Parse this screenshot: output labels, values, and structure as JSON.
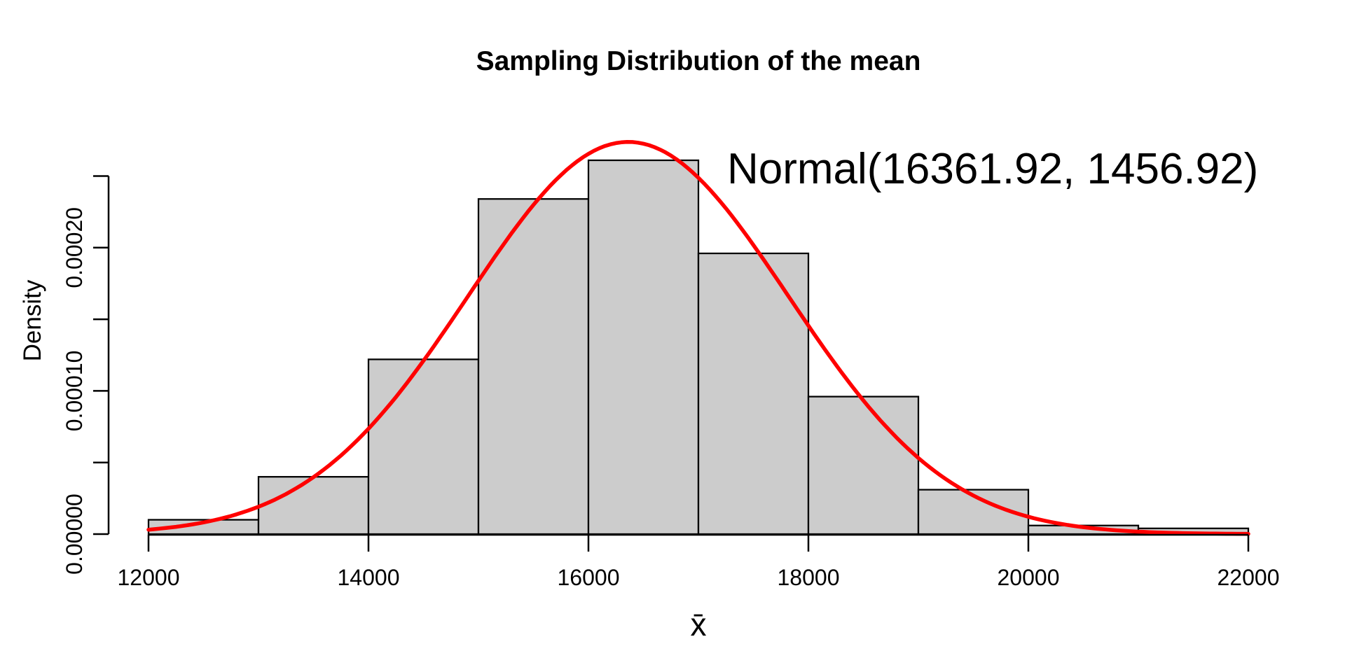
{
  "window": {
    "background": "#ffffff"
  },
  "chart_data": {
    "type": "bar",
    "subtype": "histogram-with-normal-curve",
    "title": "Sampling Distribution of the mean",
    "xlabel": "x̄",
    "ylabel": "Density",
    "annotation": "Normal(16361.92, 1456.92)",
    "normal_curve": {
      "mean": 16361.92,
      "sd": 1456.92,
      "color": "#ff0000",
      "stroke_width": 5.5
    },
    "bins": {
      "start": 12000,
      "bin_width": 1000,
      "categories": [
        "12000-13000",
        "13000-14000",
        "14000-15000",
        "15000-16000",
        "16000-17000",
        "17000-18000",
        "18000-19000",
        "19000-20000",
        "20000-21000",
        "21000-22000"
      ],
      "densities": [
        1e-05,
        4e-05,
        0.000122,
        0.000234,
        0.000261,
        0.000196,
        9.6e-05,
        3.1e-05,
        6e-06,
        4e-06
      ]
    },
    "xlim": [
      12000,
      22000
    ],
    "ylim": [
      0,
      0.00025
    ],
    "x_ticks": [
      12000,
      14000,
      16000,
      18000,
      20000,
      22000
    ],
    "x_tick_labels": [
      "12000",
      "14000",
      "16000",
      "18000",
      "20000",
      "22000"
    ],
    "y_ticks": [
      0,
      5e-05,
      0.0001,
      0.00015,
      0.0002,
      0.00025
    ],
    "y_tick_labels": [
      "0.00000",
      "",
      "0.00010",
      "",
      "0.00020",
      ""
    ],
    "grid": false,
    "legend": "none",
    "colors": {
      "bar_fill": "#cccccc",
      "bar_stroke": "#000000",
      "axis": "#000000",
      "text": "#000000",
      "curve": "#ff0000"
    }
  }
}
